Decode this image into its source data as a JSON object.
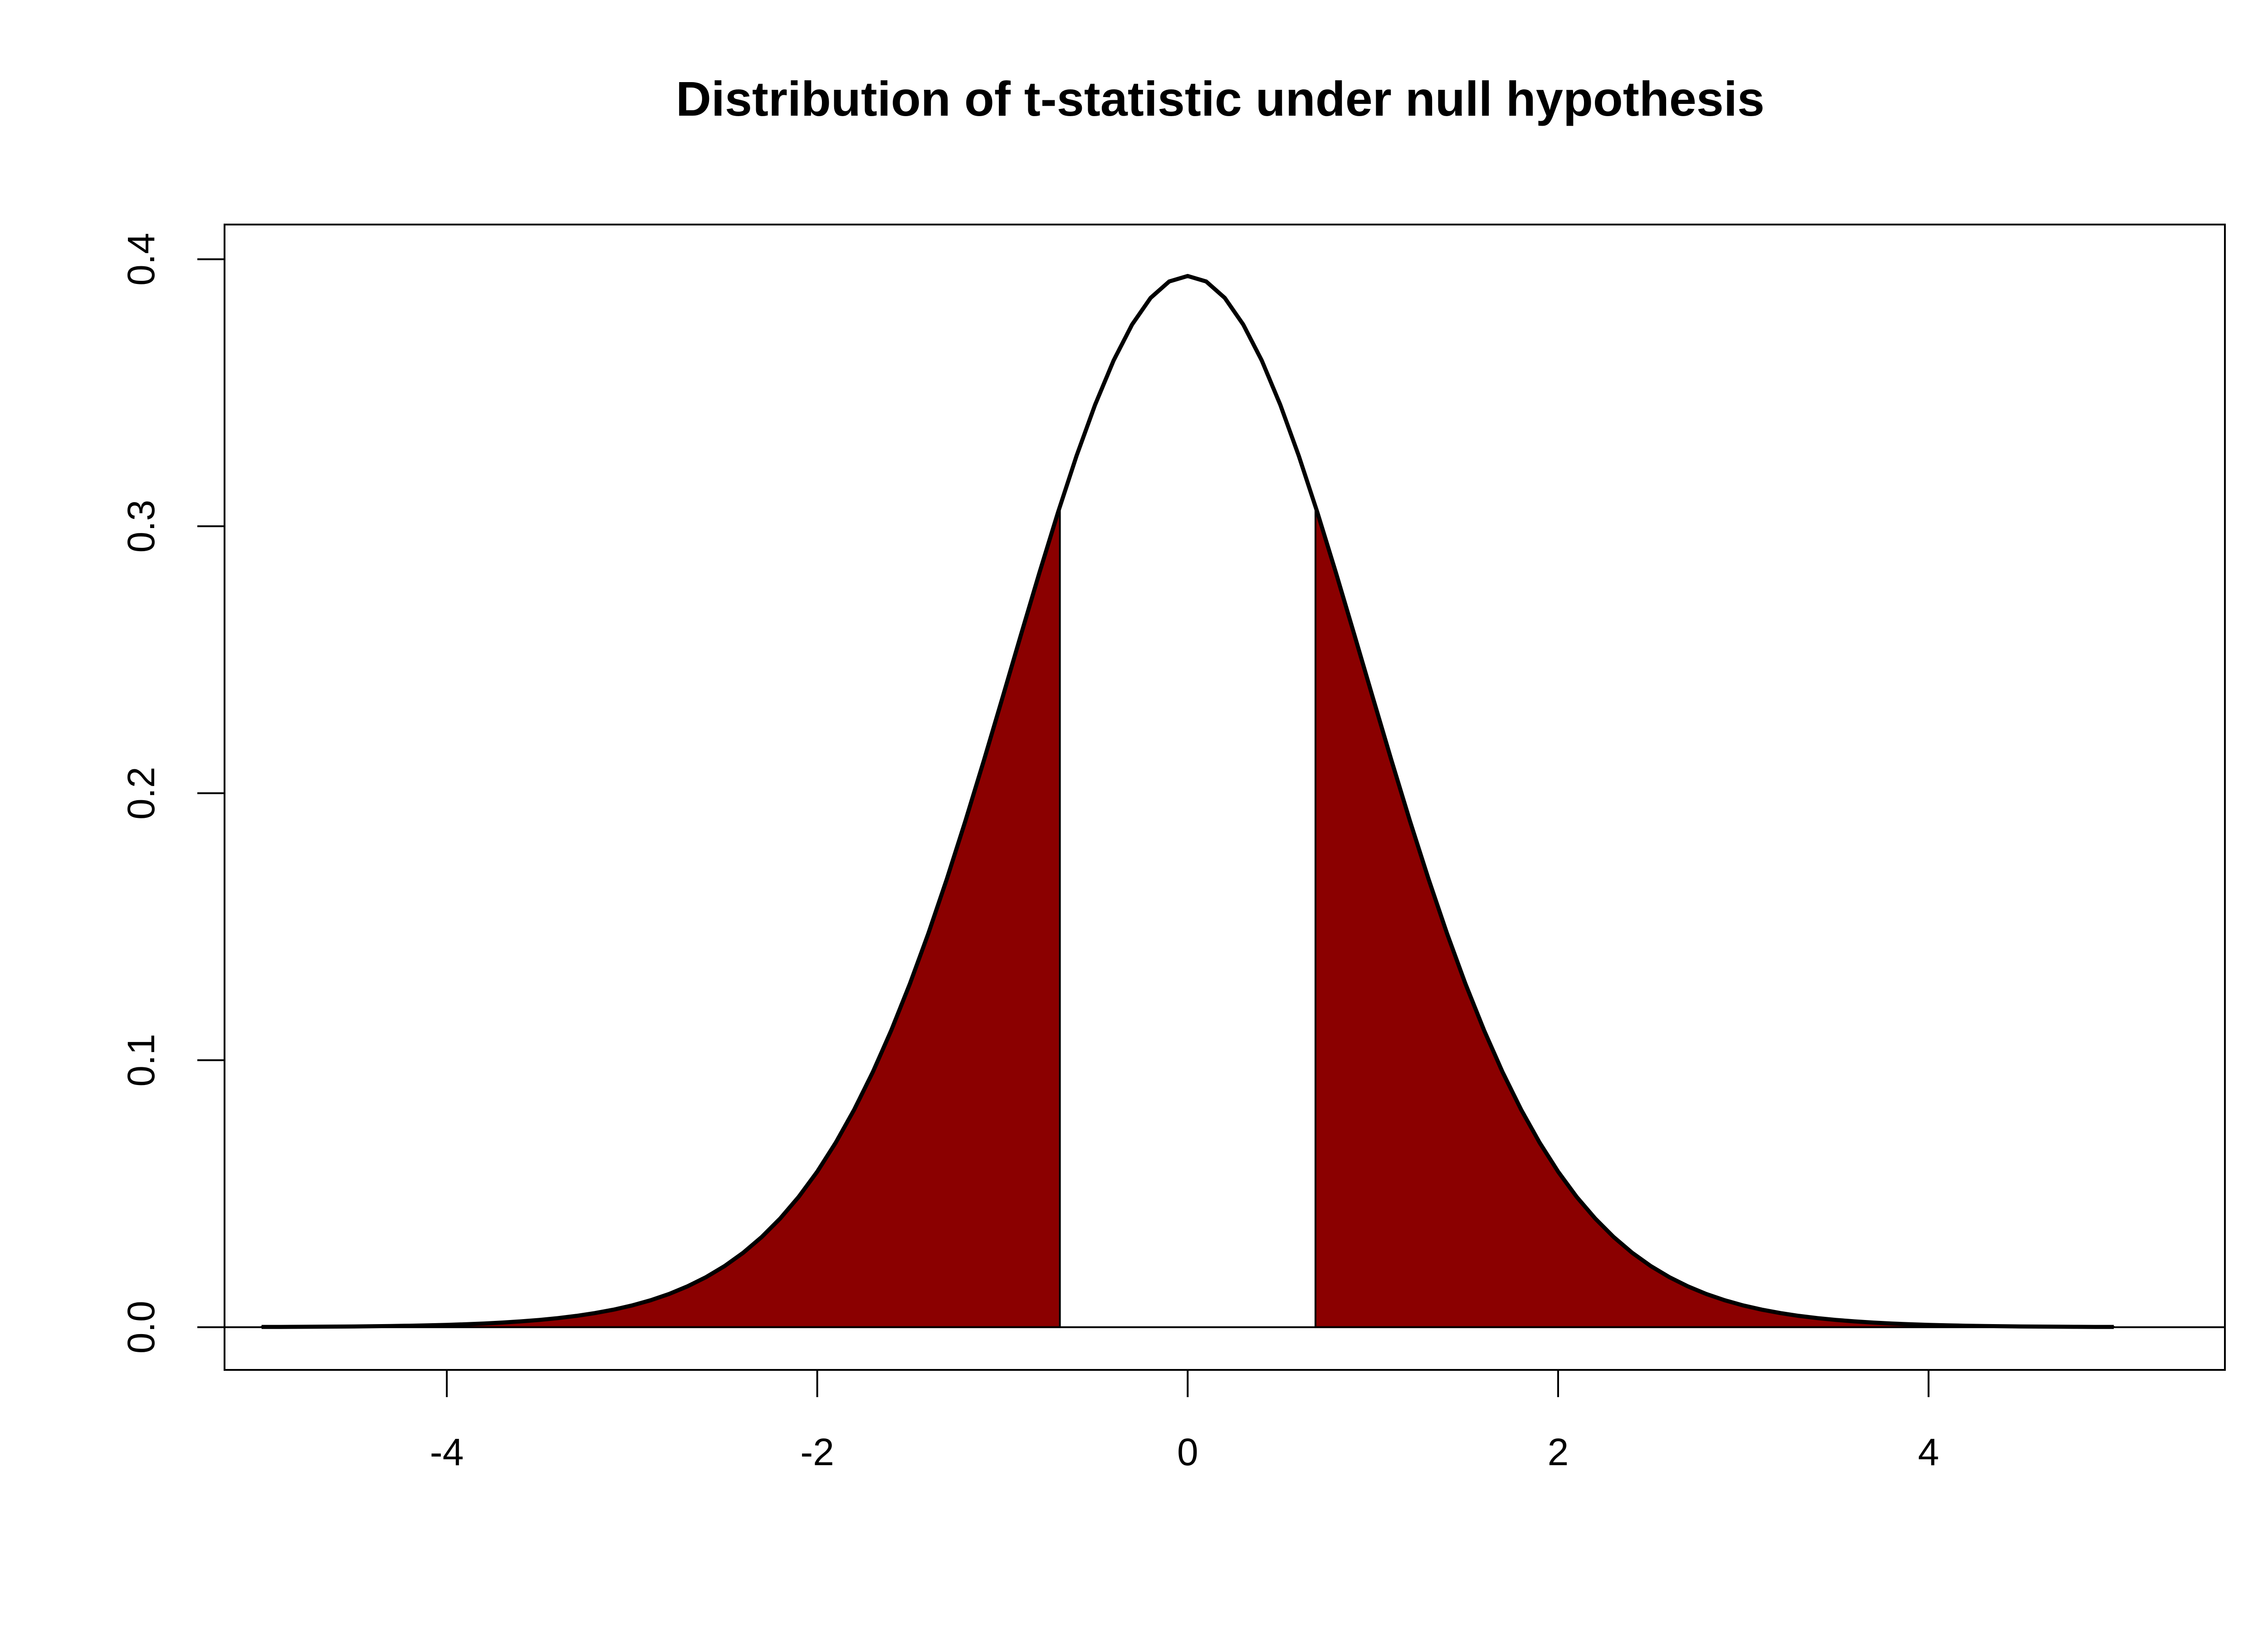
{
  "chart_data": {
    "type": "area",
    "title": "Distribution of t-statistic under null hypothesis",
    "xlabel": "",
    "ylabel": "",
    "xlim": [
      -5.2,
      5.6
    ],
    "ylim": [
      -0.016,
      0.413
    ],
    "x_ticks": [
      {
        "value": -4,
        "label": "-4"
      },
      {
        "value": -2,
        "label": "-2"
      },
      {
        "value": 0,
        "label": "0"
      },
      {
        "value": 2,
        "label": "2"
      },
      {
        "value": 4,
        "label": "4"
      }
    ],
    "y_ticks": [
      {
        "value": 0.0,
        "label": "0.0"
      },
      {
        "value": 0.1,
        "label": "0.1"
      },
      {
        "value": 0.2,
        "label": "0.2"
      },
      {
        "value": 0.3,
        "label": "0.3"
      },
      {
        "value": 0.4,
        "label": "0.4"
      }
    ],
    "curve": {
      "distribution": "t",
      "df": 19,
      "x_range": [
        -5,
        5
      ],
      "points": 101,
      "color": "#000000"
    },
    "shaded_regions": [
      {
        "from": -5,
        "to": -0.69,
        "color": "#8B0000"
      },
      {
        "from": 0.69,
        "to": 5,
        "color": "#8B0000"
      }
    ],
    "baseline": {
      "y": 0,
      "color": "#000000"
    },
    "grid": false,
    "legend": "none"
  }
}
